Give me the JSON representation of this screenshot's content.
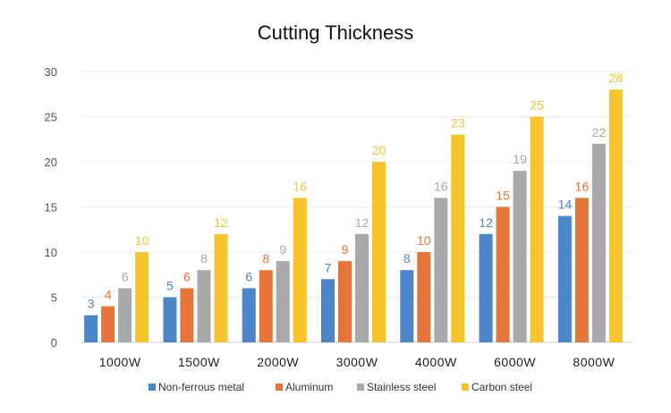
{
  "chart_data": {
    "type": "bar",
    "title": "Cutting Thickness",
    "xlabel": "",
    "ylabel": "",
    "ylim": [
      0,
      30
    ],
    "yticks": [
      0,
      5,
      10,
      15,
      20,
      25,
      30
    ],
    "categories": [
      "1000W",
      "1500W",
      "2000W",
      "3000W",
      "4000W",
      "6000W",
      "8000W"
    ],
    "grid": true,
    "legend_position": "bottom",
    "series": [
      {
        "name": "Non-ferrous metal",
        "color": "#4a86c8",
        "values": [
          3,
          5,
          6,
          7,
          8,
          12,
          14
        ]
      },
      {
        "name": "Aluminum",
        "color": "#e5753a",
        "values": [
          4,
          6,
          8,
          9,
          10,
          15,
          16
        ]
      },
      {
        "name": "Stainless steel",
        "color": "#a9a9ac",
        "values": [
          6,
          8,
          9,
          12,
          16,
          19,
          22
        ]
      },
      {
        "name": "Carbon steel",
        "color": "#f7c42c",
        "values": [
          10,
          12,
          16,
          20,
          23,
          25,
          28
        ]
      }
    ]
  }
}
